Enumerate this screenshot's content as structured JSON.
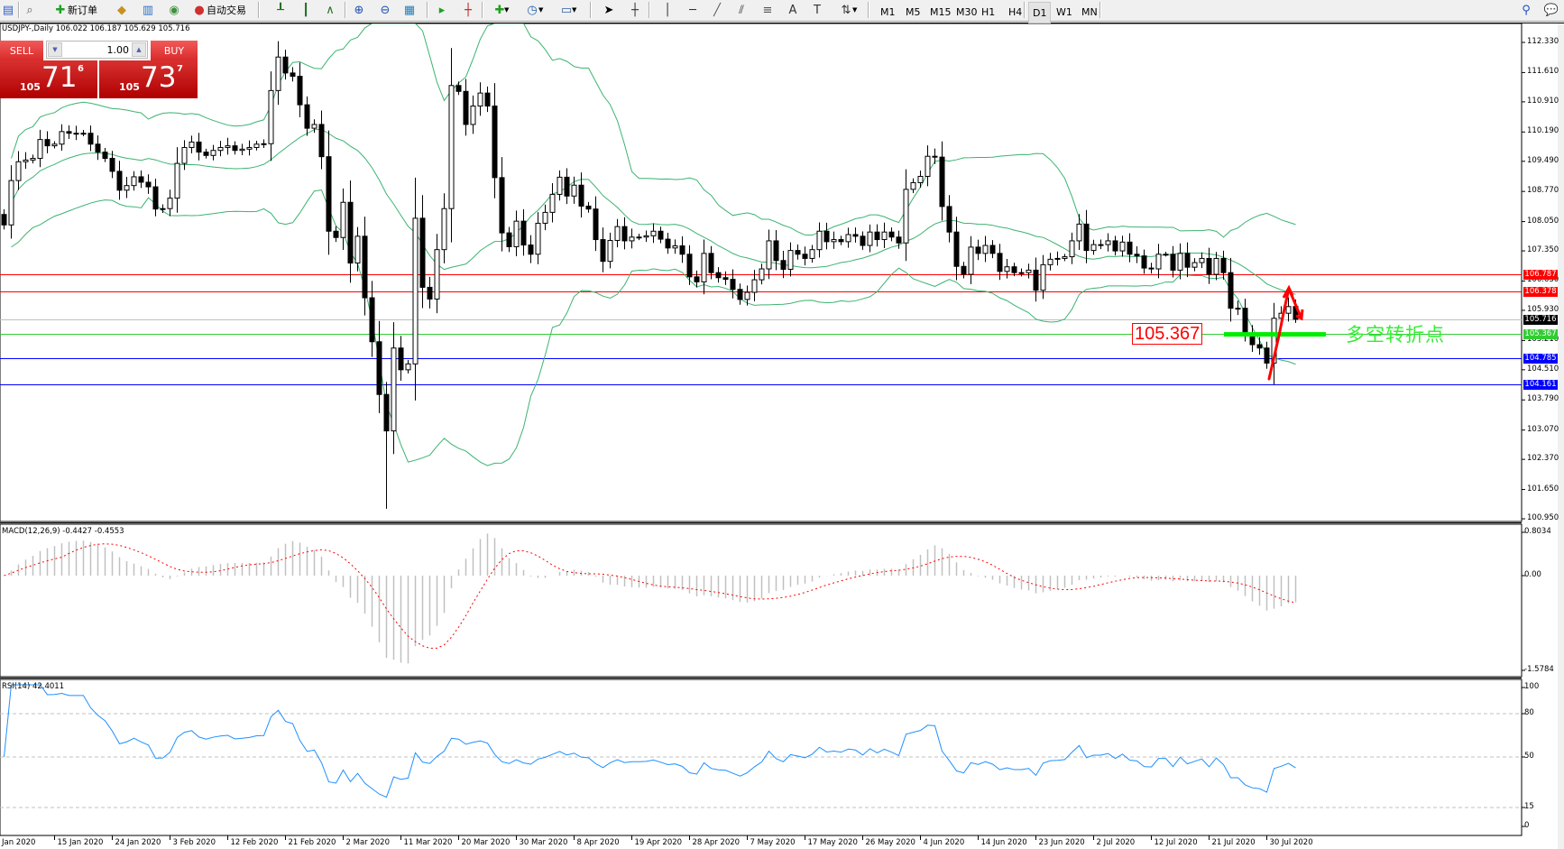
{
  "toolbar": {
    "new_order_label": "新订单",
    "autotrading_label": "自动交易",
    "timeframes": [
      "M1",
      "M5",
      "M15",
      "M30",
      "H1",
      "H4",
      "D1",
      "W1",
      "MN"
    ],
    "active_timeframe": "D1",
    "icons": [
      "new-chart-icon",
      "zoom-glass-icon",
      "new-order-icon",
      "market-watch-icon",
      "navigator-icon",
      "signal-icon",
      "autotrading-icon",
      "bar-chart-icon",
      "candlestick-icon",
      "line-chart-icon",
      "zoom-in-icon",
      "zoom-out-icon",
      "tile-windows-icon",
      "auto-scroll-icon",
      "chart-shift-icon",
      "indicators-icon",
      "periods-icon",
      "templates-icon",
      "cursor-icon",
      "crosshair-icon",
      "vertical-line-icon",
      "horizontal-line-icon",
      "trendline-icon",
      "equidistant-channel-icon",
      "fibonacci-icon",
      "text-icon",
      "text-label-icon",
      "arrows-icon",
      "search-icon",
      "chat-icon"
    ]
  },
  "chart": {
    "symbol_line": "USDJPY-,Daily  106.022 106.187 105.629 105.716",
    "one_click": {
      "sell_label": "SELL",
      "buy_label": "BUY",
      "volume": "1.00",
      "sell_price": {
        "prefix": "105",
        "main": "71",
        "sup": "6"
      },
      "buy_price": {
        "prefix": "105",
        "main": "73",
        "sup": "7"
      }
    },
    "price_ticks": [
      "112.330",
      "111.610",
      "110.910",
      "110.190",
      "109.490",
      "108.770",
      "108.050",
      "107.350",
      "106.630",
      "105.930",
      "105.210",
      "104.510",
      "103.790",
      "103.070",
      "102.370",
      "101.650",
      "100.950"
    ],
    "levels": [
      {
        "value": "106.787",
        "color": "#ff0000"
      },
      {
        "value": "106.378",
        "color": "#ff0000"
      },
      {
        "value": "105.716",
        "color": "#000000",
        "line_color": "#c0c0c0"
      },
      {
        "value": "105.367",
        "color": "#32cd32"
      },
      {
        "value": "104.785",
        "color": "#0000ff"
      },
      {
        "value": "104.161",
        "color": "#0000ff"
      }
    ],
    "annotation_price": "105.367",
    "annotation_text": "多空转折点",
    "colors": {
      "bands": "#3cb371",
      "bull": "#ffffff",
      "bear": "#000000",
      "macd_hist": "#c0c0c0",
      "macd_signal": "#ff0000",
      "rsi": "#1e90ff",
      "arrow": "#ff0000",
      "pivot_bar": "#00ee00"
    }
  },
  "chart_data": {
    "type": "candlestick",
    "symbol": "USDJPY-",
    "timeframe": "Daily",
    "ylim": [
      100.95,
      112.33
    ],
    "closes": [
      107.97,
      109.03,
      109.48,
      109.52,
      109.56,
      110.01,
      109.86,
      109.9,
      110.2,
      110.16,
      110.16,
      110.16,
      109.9,
      109.71,
      109.56,
      109.25,
      108.8,
      108.91,
      109.12,
      108.99,
      108.88,
      108.35,
      108.36,
      108.61,
      109.44,
      109.82,
      109.95,
      109.71,
      109.63,
      109.75,
      109.82,
      109.86,
      109.75,
      109.78,
      109.82,
      109.9,
      109.91,
      111.18,
      111.98,
      111.6,
      111.52,
      110.84,
      110.28,
      110.37,
      109.6,
      107.82,
      107.67,
      108.51,
      107.06,
      107.7,
      106.23,
      105.18,
      103.92,
      103.05,
      105.03,
      104.51,
      104.65,
      108.13,
      106.48,
      106.2,
      107.38,
      108.36,
      111.3,
      111.16,
      110.37,
      110.81,
      111.12,
      110.81,
      109.1,
      107.78,
      107.45,
      108.06,
      107.49,
      107.27,
      108.01,
      108.27,
      108.7,
      109.11,
      108.66,
      108.92,
      108.42,
      108.35,
      107.62,
      107.1,
      107.6,
      107.93,
      107.59,
      107.68,
      107.68,
      107.71,
      107.82,
      107.63,
      107.42,
      107.47,
      107.27,
      106.73,
      106.61,
      107.29,
      106.83,
      106.71,
      106.67,
      106.43,
      106.19,
      106.36,
      106.66,
      106.92,
      107.59,
      107.12,
      106.91,
      107.36,
      107.27,
      107.17,
      107.38,
      107.82,
      107.57,
      107.62,
      107.57,
      107.74,
      107.7,
      107.48,
      107.8,
      107.62,
      107.8,
      107.68,
      107.54,
      108.82,
      108.98,
      109.13,
      109.61,
      109.59,
      108.41,
      107.8,
      106.98,
      106.79,
      107.44,
      107.29,
      107.48,
      107.29,
      106.86,
      106.97,
      106.83,
      106.83,
      106.89,
      106.41,
      107.02,
      107.15,
      107.17,
      107.21,
      107.59,
      107.99,
      107.36,
      107.5,
      107.5,
      107.59,
      107.35,
      107.56,
      107.27,
      107.23,
      106.94,
      106.92,
      107.27,
      107.27,
      106.89,
      107.29,
      106.96,
      107.07,
      107.17,
      106.79,
      107.17,
      106.83,
      105.98,
      105.98,
      105.39,
      105.11,
      105.03,
      104.67,
      105.74,
      105.86,
      106.02,
      105.716
    ],
    "extremes": {
      "53": {
        "low": 101.19
      },
      "176": {
        "low": 104.16
      },
      "179": {
        "open": 106.022,
        "high": 106.187,
        "low": 105.629
      }
    },
    "date_labels": [
      "Jan 2020",
      "15 Jan 2020",
      "24 Jan 2020",
      "3 Feb 2020",
      "12 Feb 2020",
      "21 Feb 2020",
      "2 Mar 2020",
      "11 Mar 2020",
      "20 Mar 2020",
      "30 Mar 2020",
      "8 Apr 2020",
      "19 Apr 2020",
      "28 Apr 2020",
      "7 May 2020",
      "17 May 2020",
      "26 May 2020",
      "4 Jun 2020",
      "14 Jun 2020",
      "23 Jun 2020",
      "2 Jul 2020",
      "12 Jul 2020",
      "21 Jul 2020",
      "30 Jul 2020"
    ],
    "bollinger": {
      "period": 20,
      "deviation": 2
    },
    "macd": {
      "label": "MACD(12,26,9) -0.4427 -0.4553",
      "ylim": [
        -1.5784,
        0.8034
      ],
      "ticks": [
        "0.8034",
        "0.00",
        "-1.5784"
      ]
    },
    "rsi": {
      "label": "RSI(14) 42.4011",
      "ticks": [
        "100",
        "80",
        "50",
        "15",
        "0"
      ],
      "levels": [
        80,
        50,
        15
      ]
    }
  }
}
